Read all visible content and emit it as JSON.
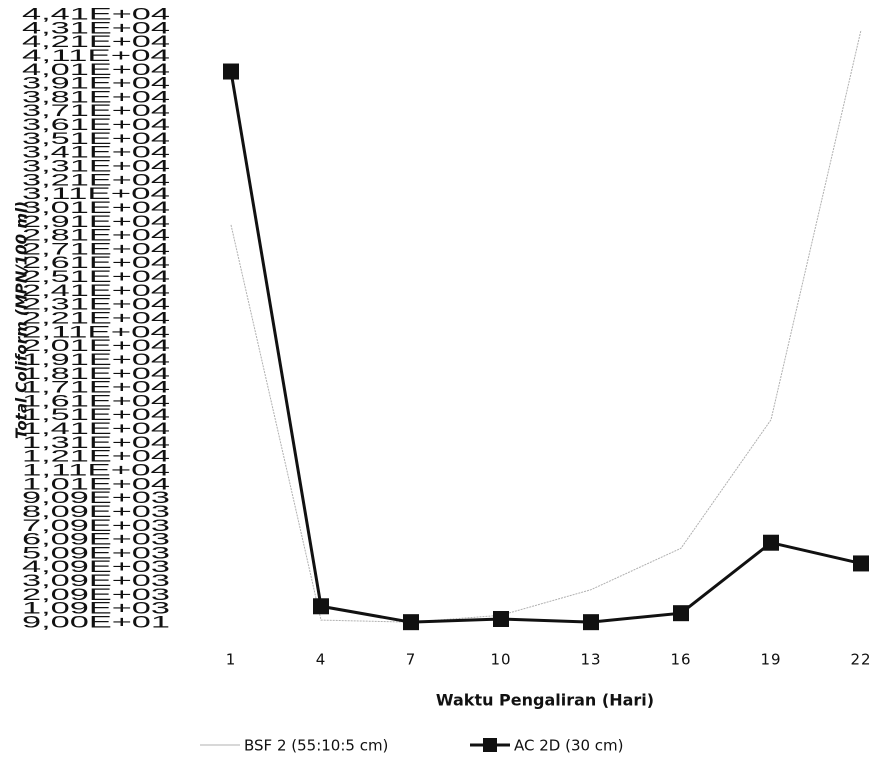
{
  "chart_data": {
    "type": "line",
    "categories": [
      "1",
      "4",
      "7",
      "10",
      "13",
      "16",
      "19",
      "22"
    ],
    "series": [
      {
        "name": "BSF 2 (55:10:5 cm)",
        "color": "#b0b0b0",
        "values": [
          28900,
          300,
          150,
          650,
          2500,
          5500,
          14800,
          43000
        ]
      },
      {
        "name": "AC 2D (30 cm)",
        "color": "#111111",
        "values": [
          40000,
          1300,
          150,
          380,
          150,
          800,
          5900,
          4400
        ]
      }
    ],
    "x_label": "Waktu Pengaliran (Hari)",
    "y_label": "Total Coliform (MPN/100 ml)",
    "ylim": [
      90,
      44090
    ],
    "yticks": [
      {
        "value": 90,
        "label": "9,00E+01"
      },
      {
        "value": 1090,
        "label": "1,09E+03"
      },
      {
        "value": 2090,
        "label": "2,09E+03"
      },
      {
        "value": 3090,
        "label": "3,09E+03"
      },
      {
        "value": 4090,
        "label": "4,09E+03"
      },
      {
        "value": 5090,
        "label": "5,09E+03"
      },
      {
        "value": 6090,
        "label": "6,09E+03"
      },
      {
        "value": 7090,
        "label": "7,09E+03"
      },
      {
        "value": 8090,
        "label": "8,09E+03"
      },
      {
        "value": 9090,
        "label": "9,09E+03"
      },
      {
        "value": 10090,
        "label": "1,01E+04"
      },
      {
        "value": 11090,
        "label": "1,11E+04"
      },
      {
        "value": 12090,
        "label": "1,21E+04"
      },
      {
        "value": 13090,
        "label": "1,31E+04"
      },
      {
        "value": 14090,
        "label": "1,41E+04"
      },
      {
        "value": 15090,
        "label": "1,51E+04"
      },
      {
        "value": 16090,
        "label": "1,61E+04"
      },
      {
        "value": 17090,
        "label": "1,71E+04"
      },
      {
        "value": 18090,
        "label": "1,81E+04"
      },
      {
        "value": 19090,
        "label": "1,91E+04"
      },
      {
        "value": 20090,
        "label": "2,01E+04"
      },
      {
        "value": 21090,
        "label": "2,11E+04"
      },
      {
        "value": 22090,
        "label": "2,21E+04"
      },
      {
        "value": 23090,
        "label": "2,31E+04"
      },
      {
        "value": 24090,
        "label": "2,41E+04"
      },
      {
        "value": 25090,
        "label": "2,51E+04"
      },
      {
        "value": 26090,
        "label": "2,61E+04"
      },
      {
        "value": 27090,
        "label": "2,71E+04"
      },
      {
        "value": 28090,
        "label": "2,81E+04"
      },
      {
        "value": 29090,
        "label": "2,91E+04"
      },
      {
        "value": 30090,
        "label": "3,01E+04"
      },
      {
        "value": 31090,
        "label": "3,11E+04"
      },
      {
        "value": 32090,
        "label": "3,21E+04"
      },
      {
        "value": 33090,
        "label": "3,31E+04"
      },
      {
        "value": 34090,
        "label": "3,41E+04"
      },
      {
        "value": 35090,
        "label": "3,51E+04"
      },
      {
        "value": 36090,
        "label": "3,61E+04"
      },
      {
        "value": 37090,
        "label": "3,71E+04"
      },
      {
        "value": 38090,
        "label": "3,81E+04"
      },
      {
        "value": 39090,
        "label": "3,91E+04"
      },
      {
        "value": 40090,
        "label": "4,01E+04"
      },
      {
        "value": 41090,
        "label": "4,11E+04"
      },
      {
        "value": 42090,
        "label": "4,21E+04"
      },
      {
        "value": 43090,
        "label": "4,31E+04"
      },
      {
        "value": 44090,
        "label": "4,41E+04"
      }
    ],
    "grid": false,
    "legend": "bottom"
  }
}
